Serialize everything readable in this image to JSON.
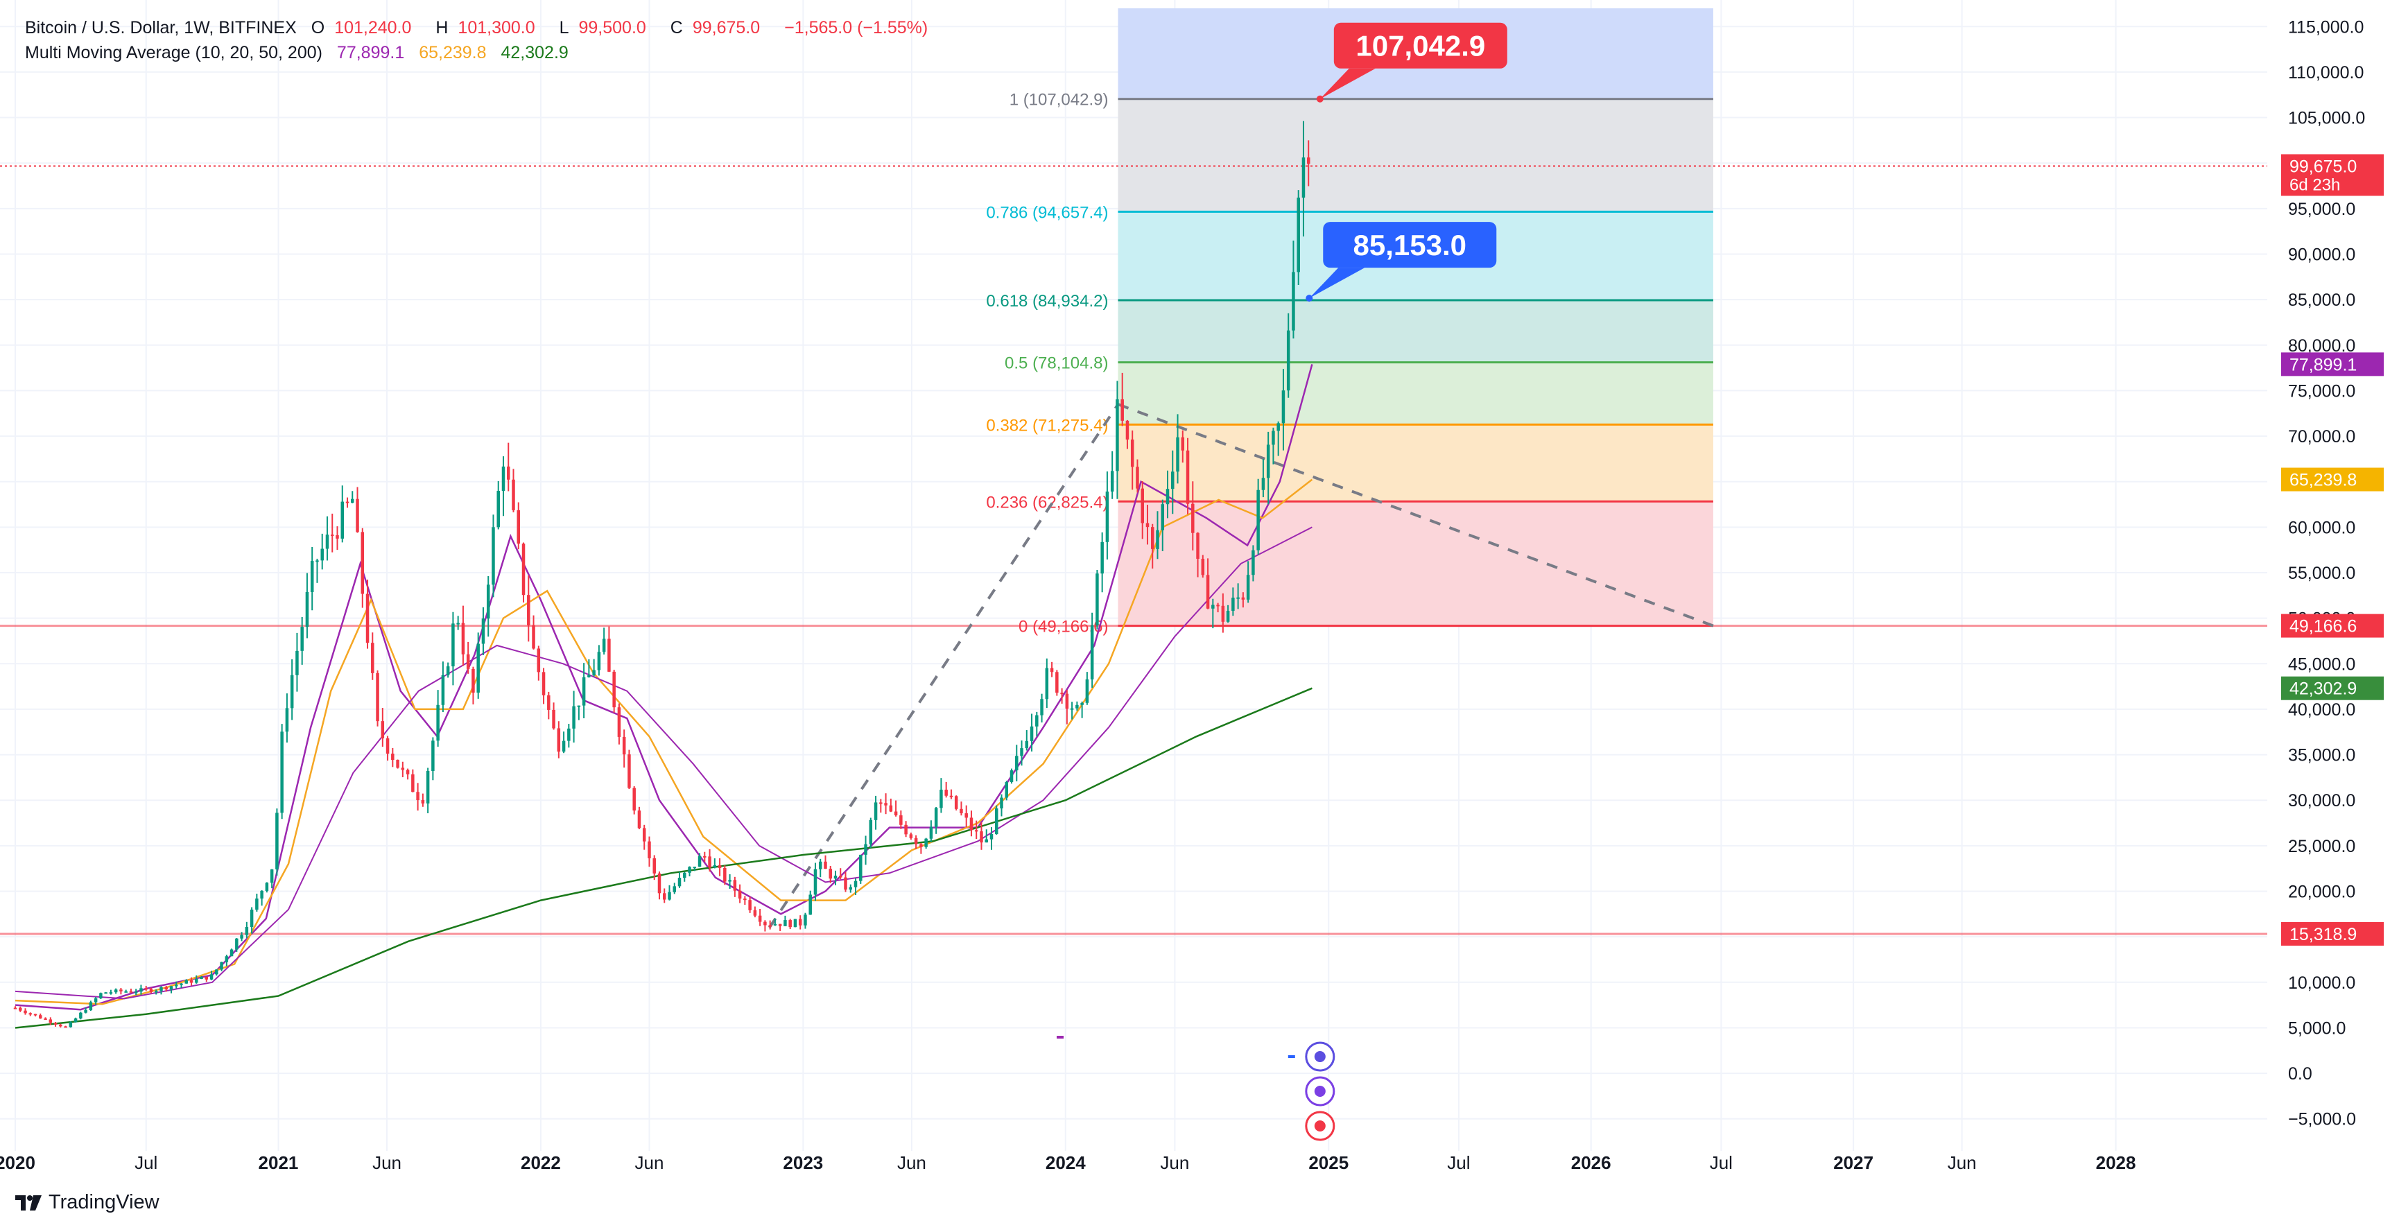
{
  "header": {
    "symbol": "Bitcoin / U.S. Dollar, 1W, BITFINEX",
    "open_label": "O",
    "open": "101,240.0",
    "high_label": "H",
    "high": "101,300.0",
    "low_label": "L",
    "low": "99,500.0",
    "close_label": "C",
    "close": "99,675.0",
    "change": "−1,565.0 (−1.55%)",
    "indicator": "Multi Moving Average (10, 20, 50, 200)",
    "ma_values": [
      "77,899.1",
      "65,239.8",
      "42,302.9"
    ]
  },
  "branding": {
    "name": "TradingView"
  },
  "colors": {
    "up": "#089981",
    "down": "#f23645",
    "ma10": "#9c27b0",
    "ma20": "#ff9800",
    "ma50": "#9c27b0",
    "ma200": "#1b7a1b",
    "price_line": "#f23645",
    "blue_label": "#2962ff"
  },
  "chart_data": {
    "type": "candlestick",
    "x": {
      "range": [
        "2020-01-01",
        "2028-12-31"
      ],
      "tick_labels": [
        {
          "date": "2020-01-01",
          "label": "2020"
        },
        {
          "date": "2020-07-01",
          "label": "Jul"
        },
        {
          "date": "2021-01-01",
          "label": "2021"
        },
        {
          "date": "2021-06-01",
          "label": "Jun"
        },
        {
          "date": "2022-01-01",
          "label": "2022"
        },
        {
          "date": "2022-06-01",
          "label": "Jun"
        },
        {
          "date": "2023-01-01",
          "label": "2023"
        },
        {
          "date": "2023-06-01",
          "label": "Jun"
        },
        {
          "date": "2024-01-01",
          "label": "2024"
        },
        {
          "date": "2024-06-01",
          "label": "Jun"
        },
        {
          "date": "2025-01-01",
          "label": "2025"
        },
        {
          "date": "2025-07-01",
          "label": "Jul"
        },
        {
          "date": "2026-01-01",
          "label": "2026"
        },
        {
          "date": "2026-07-01",
          "label": "Jul"
        },
        {
          "date": "2027-01-01",
          "label": "2027"
        },
        {
          "date": "2027-06-01",
          "label": "Jun"
        },
        {
          "date": "2028-01-01",
          "label": "2028"
        }
      ]
    },
    "y": {
      "range": [
        -7000,
        117000
      ],
      "ticks": [
        -5000,
        0,
        5000,
        10000,
        15000,
        20000,
        25000,
        30000,
        35000,
        40000,
        45000,
        50000,
        55000,
        60000,
        65000,
        70000,
        75000,
        80000,
        85000,
        90000,
        95000,
        100000,
        105000,
        110000,
        115000
      ],
      "tick_labels": [
        "−5,000.0",
        "0.0",
        "5,000.0",
        "10,000.0",
        "15,000.0",
        "20,000.0",
        "25,000.0",
        "30,000.0",
        "35,000.0",
        "40,000.0",
        "45,000.0",
        "50,000.0",
        "55,000.0",
        "60,000.0",
        "65,000.0",
        "70,000.0",
        "75,000.0",
        "80,000.0",
        "85,000.0",
        "90,000.0",
        "95,000.0",
        "100,000.0",
        "105,000.0",
        "110,000.0",
        "115,000.0"
      ]
    },
    "price_anchors": [
      [
        "2020-01-01",
        7200
      ],
      [
        "2020-03-12",
        5000
      ],
      [
        "2020-05-01",
        8900
      ],
      [
        "2020-07-15",
        9200
      ],
      [
        "2020-10-01",
        10700
      ],
      [
        "2020-11-15",
        16000
      ],
      [
        "2020-12-25",
        23000
      ],
      [
        "2021-01-08",
        39000
      ],
      [
        "2021-02-20",
        56000
      ],
      [
        "2021-04-14",
        63000
      ],
      [
        "2021-05-19",
        38000
      ],
      [
        "2021-06-22",
        33000
      ],
      [
        "2021-07-20",
        30000
      ],
      [
        "2021-09-06",
        51000
      ],
      [
        "2021-09-28",
        41000
      ],
      [
        "2021-11-10",
        68000
      ],
      [
        "2021-12-20",
        47000
      ],
      [
        "2022-01-24",
        36000
      ],
      [
        "2022-03-29",
        47000
      ],
      [
        "2022-05-09",
        30000
      ],
      [
        "2022-06-18",
        19000
      ],
      [
        "2022-08-15",
        24000
      ],
      [
        "2022-11-09",
        16500
      ],
      [
        "2022-12-31",
        16500
      ],
      [
        "2023-01-20",
        23000
      ],
      [
        "2023-03-10",
        20000
      ],
      [
        "2023-04-14",
        30000
      ],
      [
        "2023-06-15",
        25000
      ],
      [
        "2023-07-14",
        31000
      ],
      [
        "2023-09-11",
        25000
      ],
      [
        "2023-10-24",
        34000
      ],
      [
        "2023-12-08",
        44000
      ],
      [
        "2024-01-23",
        39000
      ],
      [
        "2024-03-14",
        73000
      ],
      [
        "2024-05-01",
        57000
      ],
      [
        "2024-06-07",
        71000
      ],
      [
        "2024-07-05",
        54000
      ],
      [
        "2024-08-05",
        50000
      ],
      [
        "2024-09-06",
        53000
      ],
      [
        "2024-09-30",
        65000
      ],
      [
        "2024-10-28",
        72000
      ],
      [
        "2024-11-11",
        88000
      ],
      [
        "2024-11-22",
        99000
      ],
      [
        "2024-12-05",
        103000
      ],
      [
        "2024-12-09",
        99675
      ]
    ],
    "moving_averages": [
      {
        "period": 10,
        "last": 77899.1,
        "last_label": "77,899.1",
        "points": [
          [
            "2020-01-01",
            7500
          ],
          [
            "2020-04-01",
            7000
          ],
          [
            "2020-07-01",
            9300
          ],
          [
            "2020-10-01",
            10800
          ],
          [
            "2020-12-15",
            17000
          ],
          [
            "2021-02-15",
            38000
          ],
          [
            "2021-04-25",
            56000
          ],
          [
            "2021-06-20",
            42000
          ],
          [
            "2021-08-10",
            37000
          ],
          [
            "2021-10-01",
            46000
          ],
          [
            "2021-11-20",
            59000
          ],
          [
            "2022-01-01",
            52000
          ],
          [
            "2022-03-01",
            41000
          ],
          [
            "2022-05-01",
            39000
          ],
          [
            "2022-06-15",
            30000
          ],
          [
            "2022-09-01",
            21500
          ],
          [
            "2022-12-01",
            17500
          ],
          [
            "2023-02-01",
            20000
          ],
          [
            "2023-05-01",
            27000
          ],
          [
            "2023-09-01",
            27000
          ],
          [
            "2023-12-01",
            38000
          ],
          [
            "2024-02-10",
            47000
          ],
          [
            "2024-04-15",
            65000
          ],
          [
            "2024-07-15",
            61000
          ],
          [
            "2024-09-10",
            58000
          ],
          [
            "2024-10-25",
            65000
          ],
          [
            "2024-12-09",
            77899
          ]
        ]
      },
      {
        "period": 20,
        "last": 65239.8,
        "last_label": "65,239.8",
        "points": [
          [
            "2020-01-01",
            8000
          ],
          [
            "2020-05-01",
            7600
          ],
          [
            "2020-08-01",
            9500
          ],
          [
            "2020-11-01",
            12000
          ],
          [
            "2021-01-15",
            23000
          ],
          [
            "2021-03-15",
            42000
          ],
          [
            "2021-05-10",
            52000
          ],
          [
            "2021-07-10",
            40000
          ],
          [
            "2021-09-15",
            40000
          ],
          [
            "2021-11-10",
            50000
          ],
          [
            "2022-01-10",
            53000
          ],
          [
            "2022-03-15",
            44000
          ],
          [
            "2022-06-01",
            37000
          ],
          [
            "2022-08-15",
            26000
          ],
          [
            "2022-12-01",
            19000
          ],
          [
            "2023-03-01",
            19000
          ],
          [
            "2023-06-01",
            24500
          ],
          [
            "2023-09-01",
            27500
          ],
          [
            "2023-12-01",
            34000
          ],
          [
            "2024-03-01",
            45000
          ],
          [
            "2024-05-15",
            60000
          ],
          [
            "2024-08-01",
            63000
          ],
          [
            "2024-10-01",
            61000
          ],
          [
            "2024-12-09",
            65240
          ]
        ]
      },
      {
        "period": 50,
        "points": [
          [
            "2020-01-01",
            9000
          ],
          [
            "2020-06-01",
            8200
          ],
          [
            "2020-10-01",
            10000
          ],
          [
            "2021-01-15",
            18000
          ],
          [
            "2021-04-15",
            33000
          ],
          [
            "2021-07-15",
            42000
          ],
          [
            "2021-11-01",
            47000
          ],
          [
            "2022-02-01",
            45000
          ],
          [
            "2022-05-01",
            42000
          ],
          [
            "2022-08-01",
            34000
          ],
          [
            "2022-11-01",
            25000
          ],
          [
            "2023-02-01",
            21000
          ],
          [
            "2023-05-01",
            22000
          ],
          [
            "2023-09-01",
            25500
          ],
          [
            "2023-12-01",
            30000
          ],
          [
            "2024-03-01",
            38000
          ],
          [
            "2024-06-01",
            48000
          ],
          [
            "2024-09-01",
            56000
          ],
          [
            "2024-12-09",
            60000
          ]
        ]
      },
      {
        "period": 200,
        "last": 42302.9,
        "last_label": "42,302.9",
        "points": [
          [
            "2020-01-01",
            5000
          ],
          [
            "2020-07-01",
            6500
          ],
          [
            "2021-01-01",
            8500
          ],
          [
            "2021-07-01",
            14500
          ],
          [
            "2022-01-01",
            19000
          ],
          [
            "2022-07-01",
            22000
          ],
          [
            "2023-01-01",
            24000
          ],
          [
            "2023-07-01",
            25500
          ],
          [
            "2024-01-01",
            30000
          ],
          [
            "2024-07-01",
            37000
          ],
          [
            "2024-12-09",
            42303
          ]
        ]
      }
    ],
    "fib_range": {
      "start": "2024-03-14",
      "end": "2026-06-20"
    },
    "fib_levels": [
      {
        "ratio": "1",
        "value": 107042.9,
        "label": "1 (107,042.9)",
        "color": "#787b86",
        "fill": "#e3e4e8"
      },
      {
        "ratio": "0.786",
        "value": 94657.4,
        "label": "0.786 (94,657.4)",
        "color": "#00bcd4",
        "fill": "#c9eff3"
      },
      {
        "ratio": "0.618",
        "value": 84934.2,
        "label": "0.618 (84,934.2)",
        "color": "#089981",
        "fill": "#cde9e5"
      },
      {
        "ratio": "0.5",
        "value": 78104.8,
        "label": "0.5 (78,104.8)",
        "color": "#4caf50",
        "fill": "#dcefd9"
      },
      {
        "ratio": "0.382",
        "value": 71275.4,
        "label": "0.382 (71,275.4)",
        "color": "#ff9800",
        "fill": "#fde7c6"
      },
      {
        "ratio": "0.236",
        "value": 62825.4,
        "label": "0.236 (62,825.4)",
        "color": "#f23645",
        "fill": "#fbd6da"
      },
      {
        "ratio": "0",
        "value": 49166.6,
        "label": "0 (49,166.6)",
        "color": "#f23645"
      }
    ],
    "fib_top_band": {
      "from": 107042.9,
      "to": 117000,
      "color": "#cfdbfb"
    },
    "horizontal_lines": [
      {
        "value": 49166.6,
        "label": "49,166.6",
        "color": "#f23645"
      },
      {
        "value": 15318.9,
        "label": "15,318.9",
        "color": "#f23645"
      }
    ],
    "current_price": {
      "value": 99675.0,
      "label": "99,675.0",
      "countdown": "6d 23h"
    },
    "callouts": [
      {
        "value": 107042.9,
        "label": "107,042.9",
        "anchor_date": "2024-12-20",
        "color": "#f23645"
      },
      {
        "value": 85153.0,
        "label": "85,153.0",
        "anchor_date": "2024-12-05",
        "color": "#2962ff"
      }
    ],
    "trendlines": [
      {
        "style": "dashed",
        "from": [
          "2022-11-15",
          16000
        ],
        "to": [
          "2024-03-14",
          73500
        ]
      },
      {
        "style": "dashed",
        "from": [
          "2024-03-14",
          73500
        ],
        "to": [
          "2026-06-20",
          49166.6
        ]
      }
    ]
  }
}
